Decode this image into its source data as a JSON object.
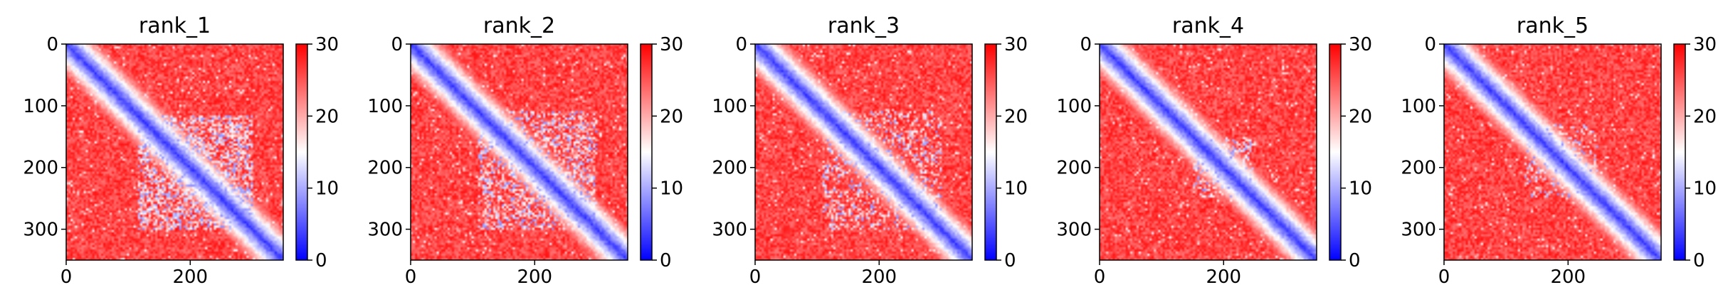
{
  "chart_data": [
    {
      "type": "heatmap",
      "title": "rank_1",
      "xticks": [
        "0",
        "200"
      ],
      "yticks": [
        "0",
        "100",
        "200",
        "300"
      ],
      "xlim": [
        0,
        350
      ],
      "ylim": [
        350,
        0
      ],
      "colorbar": {
        "ticks": [
          "0",
          "10",
          "20",
          "30"
        ],
        "range": [
          0,
          30
        ],
        "colormap": "bwr"
      },
      "contact_block": {
        "x": [
          115,
          300
        ],
        "y": [
          115,
          290
        ],
        "strength": 1.0
      }
    },
    {
      "type": "heatmap",
      "title": "rank_2",
      "xticks": [
        "0",
        "200"
      ],
      "yticks": [
        "0",
        "100",
        "200",
        "300"
      ],
      "xlim": [
        0,
        350
      ],
      "ylim": [
        350,
        0
      ],
      "colorbar": {
        "ticks": [
          "0",
          "10",
          "20",
          "30"
        ],
        "range": [
          0,
          30
        ],
        "colormap": "bwr"
      },
      "contact_block": {
        "x": [
          110,
          300
        ],
        "y": [
          110,
          300
        ],
        "strength": 0.75
      }
    },
    {
      "type": "heatmap",
      "title": "rank_3",
      "xticks": [
        "0",
        "200"
      ],
      "yticks": [
        "0",
        "100",
        "200",
        "300"
      ],
      "xlim": [
        0,
        350
      ],
      "ylim": [
        350,
        0
      ],
      "colorbar": {
        "ticks": [
          "0",
          "10",
          "20",
          "30"
        ],
        "range": [
          0,
          30
        ],
        "colormap": "bwr"
      },
      "contact_block": {
        "x": [
          115,
          290
        ],
        "y": [
          110,
          300
        ],
        "strength": 0.55
      }
    },
    {
      "type": "heatmap",
      "title": "rank_4",
      "xticks": [
        "0",
        "200"
      ],
      "yticks": [
        "0",
        "100",
        "200",
        "300"
      ],
      "xlim": [
        0,
        350
      ],
      "ylim": [
        350,
        0
      ],
      "colorbar": {
        "ticks": [
          "0",
          "10",
          "20",
          "30"
        ],
        "range": [
          0,
          30
        ],
        "colormap": "bwr"
      },
      "contact_block": {
        "x": [
          150,
          245
        ],
        "y": [
          150,
          250
        ],
        "strength": 0.7
      }
    },
    {
      "type": "heatmap",
      "title": "rank_5",
      "xticks": [
        "0",
        "200"
      ],
      "yticks": [
        "0",
        "100",
        "200",
        "300"
      ],
      "xlim": [
        0,
        350
      ],
      "ylim": [
        350,
        0
      ],
      "colorbar": {
        "ticks": [
          "0",
          "10",
          "20",
          "30"
        ],
        "range": [
          0,
          30
        ],
        "colormap": "bwr"
      },
      "contact_block": {
        "x": [
          140,
          230
        ],
        "y": [
          130,
          250
        ],
        "strength": 0.55
      }
    }
  ]
}
